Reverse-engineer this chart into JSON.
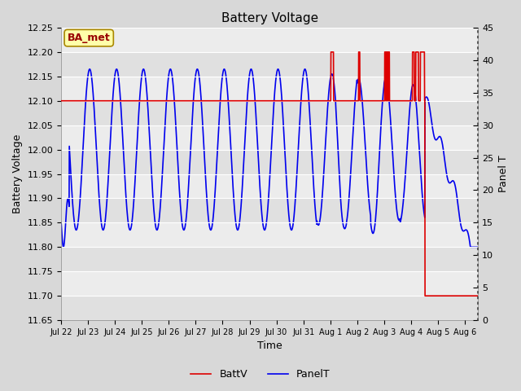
{
  "title": "Battery Voltage",
  "xlabel": "Time",
  "ylabel_left": "Battery Voltage",
  "ylabel_right": "Panel T",
  "ylim_left": [
    11.65,
    12.25
  ],
  "ylim_right": [
    0,
    45
  ],
  "yticks_left": [
    11.65,
    11.7,
    11.75,
    11.8,
    11.85,
    11.9,
    11.95,
    12.0,
    12.05,
    12.1,
    12.15,
    12.2,
    12.25
  ],
  "yticks_right": [
    0,
    5,
    10,
    15,
    20,
    25,
    30,
    35,
    40,
    45
  ],
  "bg_color": "#d8d8d8",
  "plot_bg_outer": "#d0d0d0",
  "plot_bg_inner": "#e8e8e8",
  "annotation_box": "BA_met",
  "legend_entries": [
    "BattV",
    "PanelT"
  ],
  "batt_color": "#dd0000",
  "panel_color": "#0000ee",
  "batt_linewidth": 1.2,
  "panel_linewidth": 1.2,
  "x_ticks": [
    0,
    1,
    2,
    3,
    4,
    5,
    6,
    7,
    8,
    9,
    10,
    11,
    12,
    13,
    14,
    15
  ],
  "x_tick_labels": [
    "Jul 22",
    "Jul 23",
    "Jul 24",
    "Jul 25",
    "Jul 26",
    "Jul 27",
    "Jul 28",
    "Jul 29",
    "Jul 30",
    "Jul 31",
    "Aug 1",
    "Aug 2",
    "Aug 3",
    "Aug 4",
    "Aug 5",
    "Aug 6"
  ],
  "figsize": [
    6.4,
    4.8
  ],
  "dpi": 100
}
